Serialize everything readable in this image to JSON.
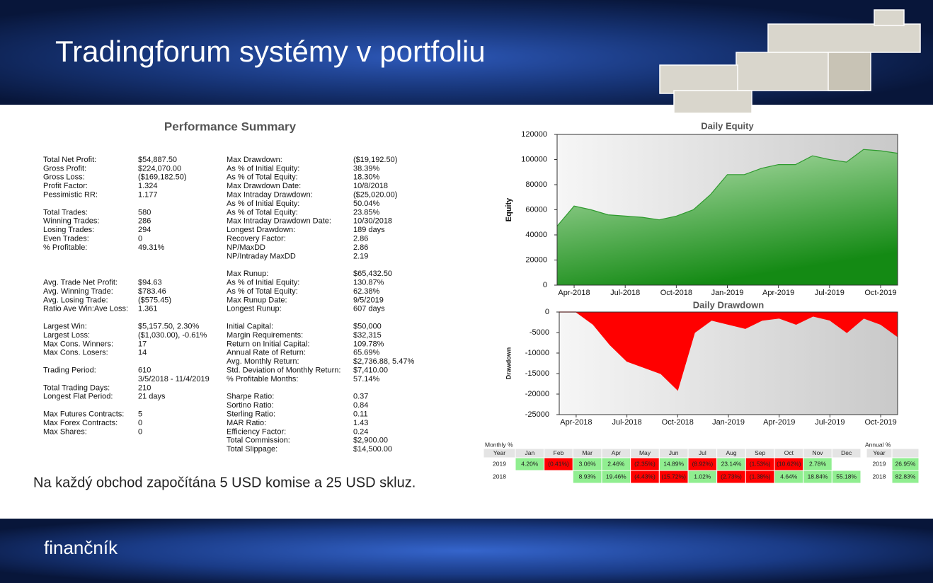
{
  "header": {
    "title": "Tradingforum systémy v portfoliu"
  },
  "summary": {
    "title": "Performance Summary",
    "left": [
      [
        {
          "label": "Total Net Profit:",
          "value": "$54,887.50",
          "color": "#1e9a1e"
        },
        {
          "label": "Gross Profit:",
          "value": "$224,070.00",
          "color": "#1e9a1e"
        },
        {
          "label": "Gross Loss:",
          "value": "($169,182.50)",
          "color": "#e00000"
        },
        {
          "label": "Profit Factor:",
          "value": "1.324"
        },
        {
          "label": "Pessimistic RR:",
          "value": "1.177"
        }
      ],
      [
        {
          "label": "Total Trades:",
          "value": "580"
        },
        {
          "label": "Winning Trades:",
          "value": "286"
        },
        {
          "label": "Losing Trades:",
          "value": "294"
        },
        {
          "label": "Even Trades:",
          "value": "0"
        },
        {
          "label": "% Profitable:",
          "value": "49.31%"
        }
      ],
      [
        {
          "label": "Avg. Trade Net Profit:",
          "value": "$94.63",
          "color": "#1e9a1e"
        },
        {
          "label": "Avg. Winning Trade:",
          "value": "$783.46",
          "color": "#1e9a1e"
        },
        {
          "label": "Avg. Losing Trade:",
          "value": "($575.45)",
          "color": "#e00000"
        },
        {
          "label": "Ratio Ave Win:Ave Loss:",
          "value": "1.361"
        }
      ],
      [
        {
          "label": "Largest Win:",
          "value": "$5,157.50, 2.30%",
          "color": "#1e9a1e"
        },
        {
          "label": "Largest Loss:",
          "value": "($1,030.00), -0.61%",
          "color": "#e00000"
        },
        {
          "label": "Max Cons. Winners:",
          "value": "17"
        },
        {
          "label": "Max Cons. Losers:",
          "value": "14"
        }
      ],
      [
        {
          "label": "Trading Period:",
          "value": [
            "610",
            "3/5/2018 - 11/4/2019"
          ]
        },
        {
          "label": "Total Trading Days:",
          "value": "210"
        },
        {
          "label": "Longest Flat Period:",
          "value": "21 days"
        }
      ],
      [
        {
          "label": "Max Futures Contracts:",
          "value": "5"
        },
        {
          "label": "Max Forex Contracts:",
          "value": "0"
        },
        {
          "label": "Max Shares:",
          "value": "0"
        }
      ]
    ],
    "right": [
      [
        {
          "label": "Max Drawdown:",
          "value": "($19,192.50)",
          "color": "#e00000"
        },
        {
          "label": "As % of Initial Equity:",
          "value": "38.39%"
        },
        {
          "label": "As % of Total Equity:",
          "value": "18.30%"
        },
        {
          "label": "Max Drawdown Date:",
          "value": "10/8/2018"
        },
        {
          "label": "Max Intraday Drawdown:",
          "value": "($25,020.00)",
          "color": "#e00000"
        },
        {
          "label": "As % of Initial Equity:",
          "value": "50.04%"
        },
        {
          "label": "As % of Total Equity:",
          "value": "23.85%"
        },
        {
          "label": "Max Intraday Drawdown Date:",
          "value": "10/30/2018"
        },
        {
          "label": "Longest Drawdown:",
          "value": "189 days"
        },
        {
          "label": "Recovery Factor:",
          "value": "2.86"
        },
        {
          "label": "NP/MaxDD",
          "value": "2.86"
        },
        {
          "label": "NP/Intraday MaxDD",
          "value": "2.19"
        }
      ],
      [
        {
          "label": "Max Runup:",
          "value": "$65,432.50",
          "color": "#1e9a1e"
        },
        {
          "label": "As % of Initial Equity:",
          "value": "130.87%"
        },
        {
          "label": "As % of Total Equity:",
          "value": "62.38%"
        },
        {
          "label": "Max Runup Date:",
          "value": "9/5/2019"
        },
        {
          "label": "Longest Runup:",
          "value": "607 days"
        }
      ],
      [
        {
          "label": "Initial Capital:",
          "value": "$50,000"
        },
        {
          "label": "Margin Requirements:",
          "value": "$32,315"
        },
        {
          "label": "Return on Initial Capital:",
          "value": "109.78%"
        },
        {
          "label": "Annual Rate of Return:",
          "value": "65.69%"
        },
        {
          "label": "Avg. Monthly Return:",
          "value": "$2,736.88, 5.47%",
          "color": "#1e9a1e"
        },
        {
          "label": "Std. Deviation of Monthly Return:",
          "value": "$7,410.00"
        },
        {
          "label": "% Profitable Months:",
          "value": "57.14%"
        }
      ],
      [
        {
          "label": "Sharpe Ratio:",
          "value": "0.37"
        },
        {
          "label": "Sortino Ratio:",
          "value": "0.84"
        },
        {
          "label": "Sterling Ratio:",
          "value": "0.11"
        },
        {
          "label": "MAR Ratio:",
          "value": "1.43"
        },
        {
          "label": "Efficiency Factor:",
          "value": "0.24"
        },
        {
          "label": "Total Commission:",
          "value": "$2,900.00"
        },
        {
          "label": "Total Slippage:",
          "value": "$14,500.00"
        }
      ]
    ]
  },
  "footnote": "Na každý obchod započítána 5 USD komise a 25 USD skluz.",
  "logo": "finančník",
  "chart_data": [
    {
      "type": "area",
      "title": "Daily Equity",
      "y_label": "Equity",
      "color": "#2e9a2e",
      "x": [
        "Mar-2018",
        "Apr-2018",
        "May-2018",
        "Jun-2018",
        "Jul-2018",
        "Aug-2018",
        "Sep-2018",
        "Oct-2018",
        "Nov-2018",
        "Dec-2018",
        "Jan-2019",
        "Feb-2019",
        "Mar-2019",
        "Apr-2019",
        "May-2019",
        "Jun-2019",
        "Jul-2019",
        "Aug-2019",
        "Sep-2019",
        "Oct-2019",
        "Nov-2019"
      ],
      "values": [
        47000,
        63000,
        60000,
        56000,
        55000,
        54000,
        52000,
        55000,
        60000,
        72000,
        88000,
        88000,
        93000,
        96000,
        96000,
        103000,
        100000,
        98000,
        108000,
        107000,
        105000
      ],
      "xlim": [
        "Mar-2018",
        "Nov-2019"
      ],
      "xticks": [
        "Apr-2018",
        "Jul-2018",
        "Oct-2018",
        "Jan-2019",
        "Apr-2019",
        "Jul-2019",
        "Oct-2019"
      ],
      "ylim": [
        0,
        120000
      ],
      "yticks": [
        0,
        20000,
        40000,
        60000,
        80000,
        100000,
        120000
      ]
    },
    {
      "type": "area",
      "title": "Daily Drawdown",
      "y_label": "Drawdown",
      "color": "#ff0000",
      "x": [
        "Mar-2018",
        "Apr-2018",
        "May-2018",
        "Jun-2018",
        "Jul-2018",
        "Aug-2018",
        "Sep-2018",
        "Oct-2018",
        "Nov-2018",
        "Dec-2018",
        "Jan-2019",
        "Feb-2019",
        "Mar-2019",
        "Apr-2019",
        "May-2019",
        "Jun-2019",
        "Jul-2019",
        "Aug-2019",
        "Sep-2019",
        "Oct-2019",
        "Nov-2019"
      ],
      "values": [
        0,
        0,
        -3000,
        -8000,
        -12000,
        -13500,
        -15000,
        -19000,
        -5000,
        -2000,
        -3000,
        -4000,
        -2000,
        -1500,
        -3000,
        -1000,
        -2000,
        -5000,
        -1500,
        -3000,
        -6000
      ],
      "xlim": [
        "Mar-2018",
        "Nov-2019"
      ],
      "xticks": [
        "Apr-2018",
        "Jul-2018",
        "Oct-2018",
        "Jan-2019",
        "Apr-2019",
        "Jul-2019",
        "Oct-2019"
      ],
      "ylim": [
        -25000,
        0
      ],
      "yticks": [
        -25000,
        -20000,
        -15000,
        -10000,
        -5000,
        0
      ]
    }
  ],
  "monthly": {
    "title": "Monthly %",
    "header": [
      "Year",
      "Jan",
      "Feb",
      "Mar",
      "Apr",
      "May",
      "Jun",
      "Jul",
      "Aug",
      "Sep",
      "Oct",
      "Nov",
      "Dec"
    ],
    "rows": [
      [
        "2019",
        "4.20%",
        "(0.41%)",
        "3.06%",
        "2.46%",
        "(2.35%)",
        "14.89%",
        "(8.92%)",
        "23.14%",
        "(1.53%)",
        "(10.62%)",
        "2.78%",
        null
      ],
      [
        "2018",
        null,
        null,
        "8.93%",
        "19.46%",
        "(4.43%)",
        "(15.72%)",
        "1.02%",
        "(2.73%)",
        "(1.38%)",
        "4.64%",
        "18.84%",
        "55.18%"
      ]
    ]
  },
  "annual": {
    "title": "Annual %",
    "header": [
      "Year"
    ],
    "rows": [
      [
        "2019",
        "26.95%"
      ],
      [
        "2018",
        "82.83%"
      ]
    ]
  }
}
